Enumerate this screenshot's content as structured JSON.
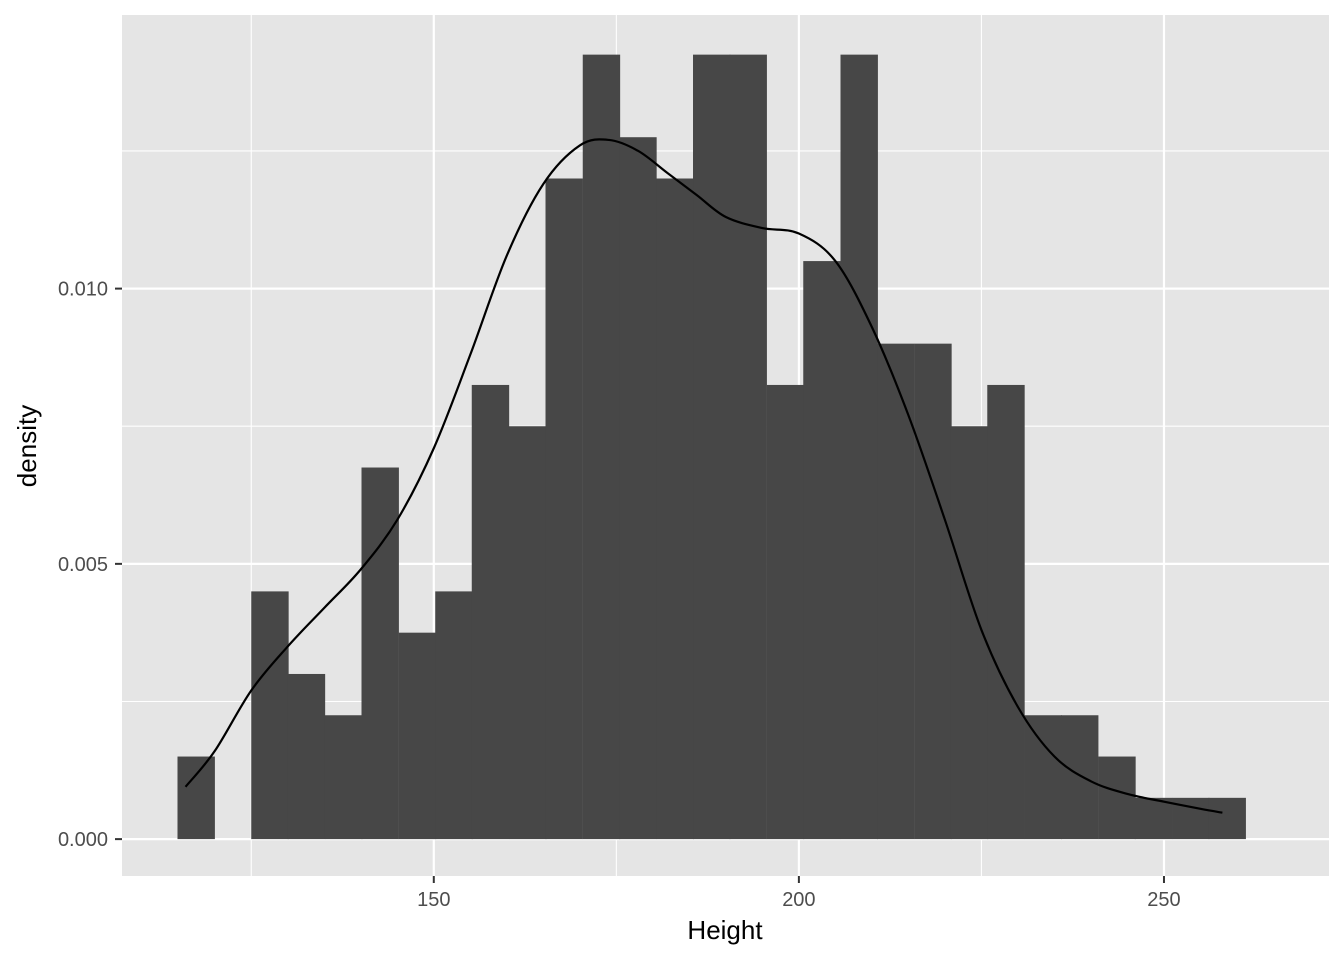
{
  "chart_data": {
    "type": "bar",
    "xlabel": "Height",
    "ylabel": "density",
    "xlim": [
      107.3,
      272.6
    ],
    "ylim": [
      -0.00067,
      0.01497
    ],
    "x_ticks": [
      150,
      200,
      250
    ],
    "x_tick_labels": [
      "150",
      "200",
      "250"
    ],
    "x_minor_ticks": [
      125,
      175,
      225
    ],
    "y_ticks": [
      0.0,
      0.005,
      0.01
    ],
    "y_tick_labels": [
      "0.000",
      "0.005",
      "0.010"
    ],
    "y_minor_ticks": [
      0.0025,
      0.0075,
      0.0125
    ],
    "grid": true,
    "background_color": "#e5e5e5",
    "grid_color": "#ffffff",
    "bar_color": "#474747",
    "line_color": "#000000",
    "histogram": {
      "bin_width": 5.04,
      "bin_left_edges": [
        114.9,
        119.9,
        125.0,
        130.0,
        135.1,
        140.1,
        145.2,
        150.2,
        155.2,
        160.3,
        165.3,
        170.4,
        175.4,
        180.5,
        185.5,
        190.5,
        195.6,
        200.6,
        205.7,
        210.7,
        215.8,
        220.8,
        225.8,
        230.9,
        235.9,
        241.0,
        246.0,
        251.1,
        256.1
      ],
      "densities": [
        0.0015,
        0.0,
        0.0045,
        0.003,
        0.00225,
        0.00675,
        0.00375,
        0.0045,
        0.00825,
        0.0075,
        0.012,
        0.01425,
        0.01275,
        0.012,
        0.01425,
        0.01425,
        0.00825,
        0.0105,
        0.01425,
        0.009,
        0.009,
        0.0075,
        0.00825,
        0.00225,
        0.00225,
        0.0015,
        0.00075,
        0.00075,
        0.00075
      ]
    },
    "density_curve": {
      "x": [
        116,
        120,
        125,
        130,
        135,
        140,
        145,
        150,
        155,
        160,
        165,
        170,
        174,
        178,
        182,
        186,
        190,
        195,
        200,
        205,
        210,
        215,
        220,
        225,
        230,
        235,
        240,
        245,
        250,
        255,
        258
      ],
      "y": [
        0.00095,
        0.0016,
        0.0027,
        0.0035,
        0.0042,
        0.0049,
        0.0058,
        0.0071,
        0.0088,
        0.0106,
        0.0119,
        0.0126,
        0.0127,
        0.0125,
        0.0121,
        0.0117,
        0.0113,
        0.0111,
        0.011,
        0.0105,
        0.0093,
        0.0077,
        0.0058,
        0.0038,
        0.0024,
        0.0015,
        0.00105,
        0.00082,
        0.00068,
        0.00055,
        0.00048
      ]
    }
  }
}
